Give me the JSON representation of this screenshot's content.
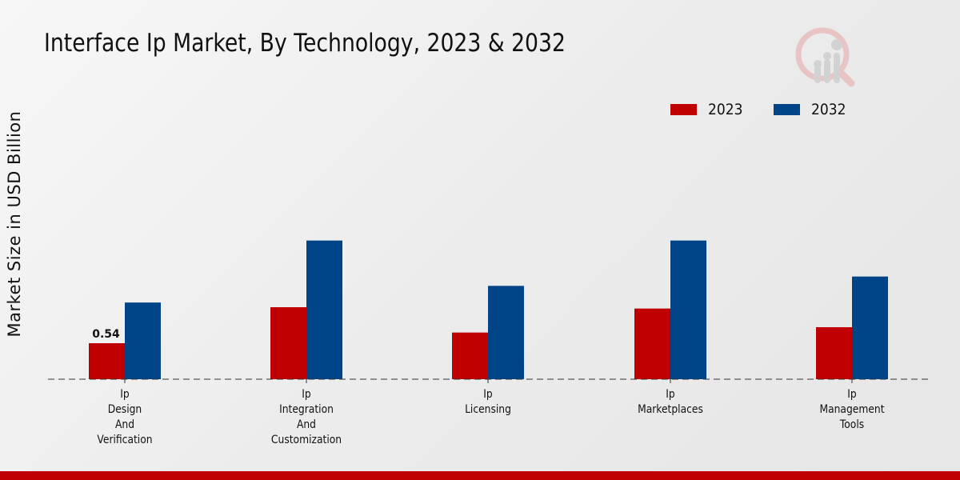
{
  "chart_data": {
    "type": "bar",
    "title": "Interface Ip Market, By Technology, 2023 & 2032",
    "xlabel": "",
    "ylabel": "Market Size in USD Billion",
    "categories": [
      [
        "Ip",
        "Design",
        "And",
        "Verification"
      ],
      [
        "Ip",
        "Integration",
        "And",
        "Customization"
      ],
      [
        "Ip",
        "Licensing"
      ],
      [
        "Ip",
        "Marketplaces"
      ],
      [
        "Ip",
        "Management",
        "Tools"
      ]
    ],
    "category_names": [
      "Ip Design And Verification",
      "Ip Integration And Customization",
      "Ip Licensing",
      "Ip Marketplaces",
      "Ip Management Tools"
    ],
    "series": [
      {
        "name": "2023",
        "color": "#c00000",
        "values": [
          0.54,
          1.08,
          0.7,
          1.06,
          0.78
        ]
      },
      {
        "name": "2032",
        "color": "#004488",
        "values": [
          1.15,
          2.08,
          1.4,
          2.08,
          1.54
        ]
      }
    ],
    "data_labels": [
      {
        "series": 0,
        "index": 0,
        "text": "0.54"
      }
    ],
    "ylim": [
      0,
      4.5
    ],
    "grid": false,
    "legend_position": "top-right"
  },
  "brand": {
    "accent": "#c00000",
    "logo": "market-research-logo-icon"
  }
}
